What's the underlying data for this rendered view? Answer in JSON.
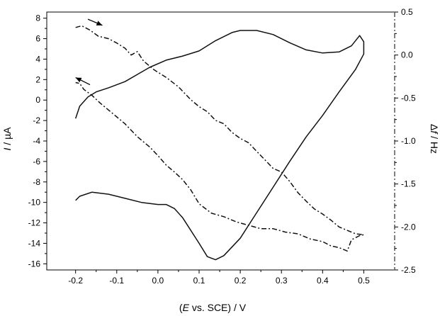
{
  "chart_data": {
    "type": "line",
    "xlabel": "(E vs. SCE) / V",
    "ylabel_left": "I / µA",
    "ylabel_right": "Δf / Hz",
    "xlim": [
      -0.27,
      0.575
    ],
    "ylim_left": [
      -16.6,
      8.6
    ],
    "ylim_right": [
      -2.5,
      0.5
    ],
    "x_ticks": [
      -0.2,
      -0.1,
      0.0,
      0.1,
      0.2,
      0.3,
      0.4,
      0.5
    ],
    "x_tick_labels": [
      "-0.2",
      "-0.1",
      "0.0",
      "0.1",
      "0.2",
      "0.3",
      "0.4",
      "0.5"
    ],
    "y_left_ticks": [
      -16,
      -14,
      -12,
      -10,
      -8,
      -6,
      -4,
      -2,
      0,
      2,
      4,
      6,
      8
    ],
    "y_left_tick_labels": [
      "-16",
      "-14",
      "-12",
      "-10",
      "-8",
      "-6",
      "-4",
      "-2",
      "0",
      "2",
      "4",
      "6",
      "8"
    ],
    "y_right_ticks": [
      -2.5,
      -2.0,
      -1.5,
      -1.0,
      -0.5,
      0.0,
      0.5
    ],
    "y_right_tick_labels": [
      "-2.5",
      "-2.0",
      "-1.5",
      "-1.0",
      "-0.5",
      "0.0",
      "0.5"
    ],
    "grid": false,
    "series": [
      {
        "style": "solid",
        "axis": "left",
        "points": [
          [
            -0.2,
            -1.8
          ],
          [
            -0.19,
            -0.6
          ],
          [
            -0.17,
            0.3
          ],
          [
            -0.15,
            0.8
          ],
          [
            -0.12,
            1.2
          ],
          [
            -0.08,
            1.8
          ],
          [
            -0.05,
            2.5
          ],
          [
            -0.02,
            3.2
          ],
          [
            0.02,
            3.9
          ],
          [
            0.06,
            4.3
          ],
          [
            0.1,
            4.8
          ],
          [
            0.14,
            5.8
          ],
          [
            0.18,
            6.6
          ],
          [
            0.2,
            6.8
          ],
          [
            0.24,
            6.8
          ],
          [
            0.28,
            6.4
          ],
          [
            0.32,
            5.6
          ],
          [
            0.36,
            4.9
          ],
          [
            0.4,
            4.6
          ],
          [
            0.44,
            4.7
          ],
          [
            0.47,
            5.3
          ],
          [
            0.49,
            6.3
          ],
          [
            0.5,
            5.7
          ],
          [
            0.5,
            4.5
          ],
          [
            0.48,
            3.0
          ],
          [
            0.44,
            0.8
          ],
          [
            0.4,
            -1.5
          ],
          [
            0.36,
            -3.6
          ],
          [
            0.32,
            -6.0
          ],
          [
            0.28,
            -8.5
          ],
          [
            0.24,
            -11.0
          ],
          [
            0.2,
            -13.5
          ],
          [
            0.16,
            -15.2
          ],
          [
            0.14,
            -15.6
          ],
          [
            0.12,
            -15.3
          ],
          [
            0.1,
            -14.0
          ],
          [
            0.06,
            -11.5
          ],
          [
            0.04,
            -10.6
          ],
          [
            0.02,
            -10.2
          ],
          [
            0.0,
            -10.2
          ],
          [
            -0.04,
            -10.0
          ],
          [
            -0.08,
            -9.6
          ],
          [
            -0.12,
            -9.2
          ],
          [
            -0.16,
            -9.0
          ],
          [
            -0.19,
            -9.4
          ],
          [
            -0.2,
            -9.8
          ]
        ]
      },
      {
        "style": "dash-dot",
        "axis": "right",
        "points": [
          [
            -0.2,
            0.32
          ],
          [
            -0.185,
            0.34
          ],
          [
            -0.165,
            0.29
          ],
          [
            -0.145,
            0.22
          ],
          [
            -0.12,
            0.19
          ],
          [
            -0.1,
            0.14
          ],
          [
            -0.08,
            0.08
          ],
          [
            -0.065,
            0.0
          ],
          [
            -0.05,
            0.04
          ],
          [
            -0.035,
            -0.07
          ],
          [
            -0.01,
            -0.17
          ],
          [
            0.02,
            -0.26
          ],
          [
            0.05,
            -0.37
          ],
          [
            0.08,
            -0.52
          ],
          [
            0.1,
            -0.6
          ],
          [
            0.12,
            -0.66
          ],
          [
            0.14,
            -0.76
          ],
          [
            0.16,
            -0.8
          ],
          [
            0.18,
            -0.9
          ],
          [
            0.2,
            -0.97
          ],
          [
            0.22,
            -1.02
          ],
          [
            0.24,
            -1.12
          ],
          [
            0.26,
            -1.22
          ],
          [
            0.28,
            -1.32
          ],
          [
            0.3,
            -1.36
          ],
          [
            0.32,
            -1.47
          ],
          [
            0.34,
            -1.6
          ],
          [
            0.36,
            -1.7
          ],
          [
            0.38,
            -1.79
          ],
          [
            0.4,
            -1.85
          ],
          [
            0.42,
            -1.92
          ],
          [
            0.44,
            -2.0
          ],
          [
            0.46,
            -2.04
          ],
          [
            0.48,
            -2.08
          ],
          [
            0.5,
            -2.09
          ],
          [
            0.49,
            -2.1
          ],
          [
            0.47,
            -2.15
          ],
          [
            0.46,
            -2.28
          ],
          [
            0.44,
            -2.24
          ],
          [
            0.42,
            -2.22
          ],
          [
            0.4,
            -2.17
          ],
          [
            0.37,
            -2.14
          ],
          [
            0.34,
            -2.08
          ],
          [
            0.31,
            -2.06
          ],
          [
            0.28,
            -2.02
          ],
          [
            0.25,
            -2.02
          ],
          [
            0.22,
            -1.98
          ],
          [
            0.19,
            -1.94
          ],
          [
            0.16,
            -1.88
          ],
          [
            0.13,
            -1.84
          ],
          [
            0.1,
            -1.73
          ],
          [
            0.08,
            -1.57
          ],
          [
            0.06,
            -1.45
          ],
          [
            0.04,
            -1.36
          ],
          [
            0.02,
            -1.28
          ],
          [
            0.0,
            -1.17
          ],
          [
            -0.02,
            -1.07
          ],
          [
            -0.05,
            -0.95
          ],
          [
            -0.08,
            -0.8
          ],
          [
            -0.1,
            -0.72
          ],
          [
            -0.12,
            -0.64
          ],
          [
            -0.14,
            -0.56
          ],
          [
            -0.16,
            -0.47
          ],
          [
            -0.18,
            -0.4
          ],
          [
            -0.19,
            -0.33
          ],
          [
            -0.2,
            -0.32
          ]
        ]
      }
    ],
    "annotations": [
      {
        "type": "arrow",
        "from": [
          -0.17,
          7.9
        ],
        "to": [
          -0.135,
          7.3
        ]
      },
      {
        "type": "arrow",
        "from": [
          -0.165,
          1.5
        ],
        "to": [
          -0.2,
          2.2
        ]
      }
    ]
  }
}
